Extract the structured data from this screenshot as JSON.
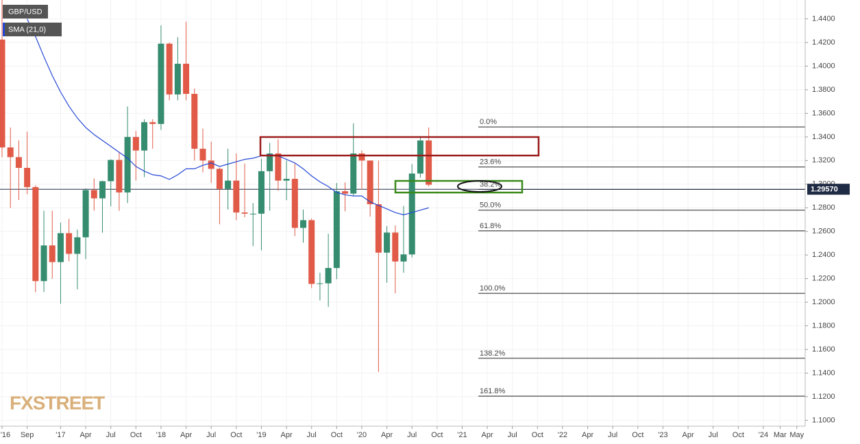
{
  "chart_data": {
    "type": "candlestick",
    "x": [
      "2016-06",
      "2016-07",
      "2016-08",
      "2016-09",
      "2016-10",
      "2016-11",
      "2016-12",
      "2017-01",
      "2017-02",
      "2017-03",
      "2017-04",
      "2017-05",
      "2017-06",
      "2017-07",
      "2017-08",
      "2017-09",
      "2017-10",
      "2017-11",
      "2017-12",
      "2018-01",
      "2018-02",
      "2018-03",
      "2018-04",
      "2018-05",
      "2018-06",
      "2018-07",
      "2018-08",
      "2018-09",
      "2018-10",
      "2018-11",
      "2018-12",
      "2019-01",
      "2019-02",
      "2019-03",
      "2019-04",
      "2019-05",
      "2019-06",
      "2019-07",
      "2019-08",
      "2019-09",
      "2019-10",
      "2019-11",
      "2019-12",
      "2020-01",
      "2020-02",
      "2020-03",
      "2020-04",
      "2020-05",
      "2020-06",
      "2020-07",
      "2020-08",
      "2020-09"
    ],
    "series": [
      {
        "name": "GBP/USD",
        "type": "candlestick",
        "up_color": "#358c6e",
        "down_color": "#e05a47",
        "open": [
          1.4225,
          1.3311,
          1.3229,
          1.3138,
          1.2975,
          1.2179,
          1.2481,
          1.234,
          1.2585,
          1.241,
          1.255,
          1.295,
          1.288,
          1.3025,
          1.3205,
          1.293,
          1.34,
          1.3285,
          1.3525,
          1.351,
          1.419,
          1.376,
          1.402,
          1.3765,
          1.33,
          1.32,
          1.313,
          1.296,
          1.303,
          1.276,
          1.275,
          1.275,
          1.311,
          1.326,
          1.303,
          1.3045,
          1.263,
          1.2695,
          1.2155,
          1.216,
          1.229,
          1.294,
          1.292,
          1.326,
          1.32,
          1.283,
          1.242,
          1.259,
          1.2345,
          1.2405,
          1.309,
          1.337
        ],
        "high": [
          1.5018,
          1.348,
          1.3371,
          1.3445,
          1.299,
          1.2775,
          1.2775,
          1.2675,
          1.2706,
          1.2615,
          1.2965,
          1.3048,
          1.303,
          1.321,
          1.3267,
          1.3658,
          1.345,
          1.355,
          1.355,
          1.4345,
          1.42,
          1.4245,
          1.4376,
          1.381,
          1.347,
          1.336,
          1.314,
          1.33,
          1.326,
          1.3175,
          1.284,
          1.3215,
          1.335,
          1.338,
          1.32,
          1.3175,
          1.2785,
          1.271,
          1.225,
          1.258,
          1.301,
          1.3015,
          1.3515,
          1.3285,
          1.32,
          1.32,
          1.2645,
          1.265,
          1.2815,
          1.317,
          1.3395,
          1.348
        ],
        "low": [
          1.3229,
          1.2798,
          1.2866,
          1.2915,
          1.2085,
          1.2087,
          1.22,
          1.1987,
          1.2347,
          1.2109,
          1.2365,
          1.2775,
          1.2589,
          1.2812,
          1.2774,
          1.284,
          1.303,
          1.306,
          1.33,
          1.346,
          1.371,
          1.371,
          1.371,
          1.32,
          1.31,
          1.301,
          1.266,
          1.2785,
          1.2695,
          1.272,
          1.2475,
          1.244,
          1.2775,
          1.2945,
          1.2865,
          1.256,
          1.2505,
          1.212,
          1.2015,
          1.196,
          1.2195,
          1.277,
          1.2905,
          1.2955,
          1.2725,
          1.141,
          1.2165,
          1.2075,
          1.225,
          1.238,
          1.3055,
          1.298
        ],
        "close": [
          1.3311,
          1.3229,
          1.3138,
          1.2975,
          1.2179,
          1.2481,
          1.234,
          1.2585,
          1.241,
          1.255,
          1.295,
          1.288,
          1.3025,
          1.3205,
          1.293,
          1.34,
          1.3285,
          1.3525,
          1.351,
          1.419,
          1.376,
          1.402,
          1.3765,
          1.33,
          1.32,
          1.313,
          1.296,
          1.303,
          1.276,
          1.275,
          1.275,
          1.311,
          1.326,
          1.303,
          1.3045,
          1.263,
          1.2695,
          1.2155,
          1.216,
          1.229,
          1.294,
          1.292,
          1.326,
          1.32,
          1.283,
          1.242,
          1.259,
          1.2345,
          1.2405,
          1.309,
          1.337,
          1.2995
        ]
      },
      {
        "name": "SMA (21,0)",
        "type": "line",
        "color": "#2447d6",
        "values": [
          null,
          null,
          null,
          1.44,
          1.425,
          1.408,
          1.392,
          1.378,
          1.366,
          1.356,
          1.348,
          1.342,
          1.337,
          1.332,
          1.327,
          1.322,
          1.315,
          1.311,
          1.308,
          1.307,
          1.304,
          1.308,
          1.313,
          1.313,
          1.316,
          1.318,
          1.315,
          1.317,
          1.319,
          1.321,
          1.322,
          1.324,
          1.325,
          1.324,
          1.321,
          1.318,
          1.313,
          1.307,
          1.302,
          1.298,
          1.293,
          1.291,
          1.29,
          1.29,
          1.285,
          1.282,
          1.279,
          1.276,
          1.274,
          1.276,
          1.278,
          1.28
        ]
      }
    ],
    "fibonacci": [
      {
        "label": "0.0%",
        "value": 1.3485
      },
      {
        "label": "23.6%",
        "value": 1.3145
      },
      {
        "label": "38.2%",
        "value": 1.2955
      },
      {
        "label": "50.0%",
        "value": 1.278
      },
      {
        "label": "61.8%",
        "value": 1.2605
      },
      {
        "label": "100.0%",
        "value": 1.2075
      },
      {
        "label": "138.2%",
        "value": 1.1525
      },
      {
        "label": "161.8%",
        "value": 1.1205
      }
    ],
    "last_price": {
      "value": 1.2957,
      "label": "1.29570"
    },
    "xlim": [
      "2016-06",
      "2024-06"
    ],
    "xticks": [
      {
        "value": "2016-06",
        "label": "'16"
      },
      {
        "value": "2016-09",
        "label": "Sep"
      },
      {
        "value": "2017-01",
        "label": "'17"
      },
      {
        "value": "2017-04",
        "label": "Apr"
      },
      {
        "value": "2017-07",
        "label": "Jul"
      },
      {
        "value": "2017-10",
        "label": "Oct"
      },
      {
        "value": "2018-01",
        "label": "'18"
      },
      {
        "value": "2018-04",
        "label": "Apr"
      },
      {
        "value": "2018-07",
        "label": "Jul"
      },
      {
        "value": "2018-10",
        "label": "Oct"
      },
      {
        "value": "2019-01",
        "label": "'19"
      },
      {
        "value": "2019-04",
        "label": "Apr"
      },
      {
        "value": "2019-07",
        "label": "Jul"
      },
      {
        "value": "2019-10",
        "label": "Oct"
      },
      {
        "value": "2020-01",
        "label": "'20"
      },
      {
        "value": "2020-04",
        "label": "Apr"
      },
      {
        "value": "2020-07",
        "label": "Jul"
      },
      {
        "value": "2020-10",
        "label": "Oct"
      },
      {
        "value": "2021-01",
        "label": "'21"
      },
      {
        "value": "2021-04",
        "label": "Apr"
      },
      {
        "value": "2021-07",
        "label": "Jul"
      },
      {
        "value": "2021-10",
        "label": "Oct"
      },
      {
        "value": "2022-01",
        "label": "'22"
      },
      {
        "value": "2022-04",
        "label": "Apr"
      },
      {
        "value": "2022-07",
        "label": "Jul"
      },
      {
        "value": "2022-10",
        "label": "Oct"
      },
      {
        "value": "2023-01",
        "label": "'23"
      },
      {
        "value": "2023-04",
        "label": "Apr"
      },
      {
        "value": "2023-07",
        "label": "Jul"
      },
      {
        "value": "2023-10",
        "label": "Oct"
      },
      {
        "value": "2024-01",
        "label": "'24"
      },
      {
        "value": "2024-03",
        "label": "Mar"
      },
      {
        "value": "2024-05",
        "label": "May"
      }
    ],
    "ylim": [
      1.095,
      1.456
    ],
    "yticks": [
      {
        "value": 1.1,
        "label": "1.1000"
      },
      {
        "value": 1.12,
        "label": "1.1200"
      },
      {
        "value": 1.14,
        "label": "1.1400"
      },
      {
        "value": 1.16,
        "label": "1.1600"
      },
      {
        "value": 1.18,
        "label": "1.1800"
      },
      {
        "value": 1.2,
        "label": "1.2000"
      },
      {
        "value": 1.22,
        "label": "1.2200"
      },
      {
        "value": 1.24,
        "label": "1.2400"
      },
      {
        "value": 1.26,
        "label": "1.2600"
      },
      {
        "value": 1.28,
        "label": "1.2800"
      },
      {
        "value": 1.3,
        "label": "1.3000"
      },
      {
        "value": 1.32,
        "label": "1.3200"
      },
      {
        "value": 1.34,
        "label": "1.3400"
      },
      {
        "value": 1.36,
        "label": "1.3600"
      },
      {
        "value": 1.38,
        "label": "1.3800"
      },
      {
        "value": 1.4,
        "label": "1.4000"
      },
      {
        "value": 1.42,
        "label": "1.4200"
      },
      {
        "value": 1.44,
        "label": "1.4400"
      }
    ],
    "grid": true,
    "logo": "FXSTREET"
  }
}
